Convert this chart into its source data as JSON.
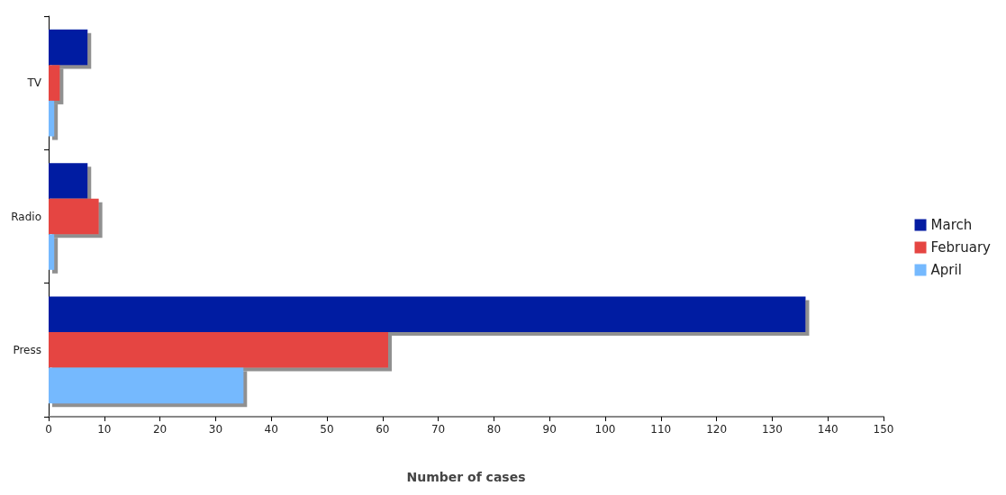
{
  "chart_data": {
    "type": "bar",
    "orientation": "horizontal",
    "xlabel": "Number of cases",
    "categories": [
      "TV",
      "Radio",
      "Press"
    ],
    "series": [
      {
        "name": "March",
        "color": "#041ca2",
        "values": [
          7,
          7,
          136
        ]
      },
      {
        "name": "February",
        "color": "#e54542",
        "values": [
          2,
          9,
          61
        ]
      },
      {
        "name": "April",
        "color": "#75b9fe",
        "values": [
          1,
          1,
          35
        ]
      }
    ],
    "xlim": [
      0,
      150
    ],
    "xticks": [
      0,
      10,
      20,
      30,
      40,
      50,
      60,
      70,
      80,
      90,
      100,
      110,
      120,
      130,
      140,
      150
    ],
    "grid": false,
    "legend": "right"
  }
}
